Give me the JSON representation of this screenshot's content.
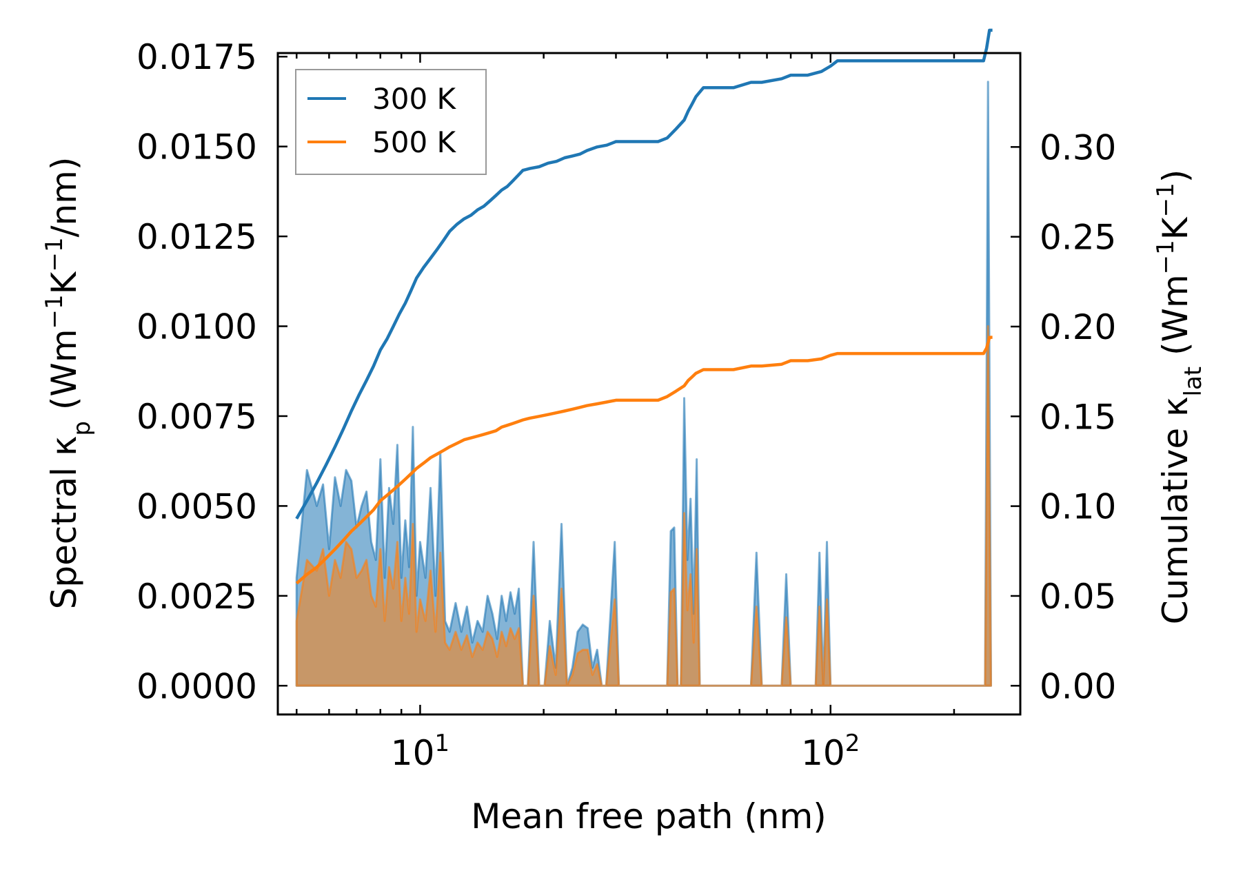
{
  "chart_data": {
    "type": "line",
    "xscale": "log",
    "xlabel": "Mean free path (nm)",
    "ylabel_left": {
      "base": "Spectral κ",
      "sub": "p",
      "units": " (Wm",
      "sup1": "−1",
      "mid": "K",
      "sup2": "−1",
      "tail": "/nm)"
    },
    "ylabel_right": {
      "base": "Cumulative κ",
      "sub": "lat",
      "units": " (Wm",
      "sup1": "−1",
      "mid": "K",
      "sup2": "−1",
      "tail": ")"
    },
    "xlim": [
      4.5,
      290
    ],
    "ylim_left": [
      -0.0008,
      0.0176
    ],
    "ylim_right": [
      -0.016,
      0.3523
    ],
    "x_ticks": [
      {
        "value": 10,
        "base": "10",
        "exp": "1"
      },
      {
        "value": 100,
        "base": "10",
        "exp": "2"
      }
    ],
    "y_ticks_left": [
      "0.0000",
      "0.0025",
      "0.0050",
      "0.0075",
      "0.0100",
      "0.0125",
      "0.0150",
      "0.0175"
    ],
    "y_ticks_right": [
      "0.00",
      "0.05",
      "0.10",
      "0.15",
      "0.20",
      "0.25",
      "0.30"
    ],
    "legend": {
      "position": "upper left",
      "entries": [
        "300 K",
        "500 K"
      ]
    },
    "colors": {
      "300 K": "#1f77b4",
      "500 K": "#ff7f0e",
      "fill_300": "#1f77b4",
      "fill_500": "#ff7f0e"
    },
    "spectral_x": [
      5.0,
      5.3,
      5.6,
      5.8,
      6.0,
      6.2,
      6.4,
      6.6,
      6.8,
      7.0,
      7.2,
      7.4,
      7.6,
      7.8,
      8.0,
      8.2,
      8.4,
      8.6,
      8.8,
      9.0,
      9.2,
      9.4,
      9.6,
      9.8,
      10.0,
      10.3,
      10.6,
      10.9,
      11.2,
      11.5,
      11.8,
      12.2,
      12.6,
      13.0,
      13.4,
      13.8,
      14.2,
      14.6,
      15.0,
      15.4,
      15.8,
      16.2,
      16.6,
      17.0,
      17.4,
      17.8,
      18.3,
      18.9,
      19.5,
      20.1,
      20.7,
      21.4,
      22.1,
      22.8,
      23.5,
      24.2,
      24.9,
      25.6,
      26.3,
      27.0,
      27.7,
      28.4,
      29.1,
      29.8,
      30.5,
      31.2,
      40.0,
      40.8,
      41.6,
      42.4,
      43.2,
      44.0,
      44.8,
      45.6,
      46.4,
      47.2,
      48.0,
      48.8,
      49.6,
      50.4,
      51.2,
      52.0,
      64.0,
      66.0,
      68.0,
      76.0,
      78.0,
      80.0,
      82.0,
      92.0,
      94.0,
      96.0,
      98.0,
      100.0,
      102.0,
      104.0,
      230.0,
      234.0,
      238.0,
      242.0,
      246.0
    ],
    "spectral_300": [
      0.003,
      0.006,
      0.005,
      0.0056,
      0.0038,
      0.0058,
      0.005,
      0.006,
      0.0057,
      0.0044,
      0.005,
      0.0054,
      0.004,
      0.0035,
      0.0063,
      0.003,
      0.0055,
      0.0045,
      0.0067,
      0.003,
      0.0046,
      0.0033,
      0.0072,
      0.0025,
      0.004,
      0.003,
      0.0055,
      0.0025,
      0.0065,
      0.0018,
      0.0015,
      0.0023,
      0.0015,
      0.0022,
      0.0012,
      0.0018,
      0.0015,
      0.0025,
      0.002,
      0.0013,
      0.0025,
      0.0018,
      0.0026,
      0.002,
      0.0027,
      0.0,
      0.0,
      0.004,
      0.0,
      0.0,
      0.0018,
      0.0005,
      0.0045,
      0.0,
      0.0005,
      0.0015,
      0.0017,
      0.0016,
      0.0005,
      0.001,
      0.0,
      0.0,
      0.002,
      0.004,
      0.0,
      0.0,
      0.0,
      0.0043,
      0.0044,
      0.0,
      0.0,
      0.008,
      0.0035,
      0.0052,
      0.002,
      0.0063,
      0.0,
      0.0,
      0.0,
      0.0,
      0.0,
      0.0,
      0.0,
      0.0037,
      0.0,
      0.0,
      0.0031,
      0.0,
      0.0,
      0.0,
      0.0037,
      0.0,
      0.004,
      0.0,
      0.0,
      0.0,
      0.0,
      0.0,
      0.0,
      0.0168,
      0.0
    ],
    "spectral_500": [
      0.0018,
      0.0035,
      0.0032,
      0.0038,
      0.0025,
      0.0035,
      0.003,
      0.004,
      0.0038,
      0.003,
      0.0032,
      0.0035,
      0.0025,
      0.0022,
      0.0038,
      0.0018,
      0.0033,
      0.0027,
      0.004,
      0.0018,
      0.003,
      0.002,
      0.0045,
      0.0015,
      0.0024,
      0.0018,
      0.0032,
      0.0015,
      0.0037,
      0.0012,
      0.001,
      0.0015,
      0.001,
      0.0014,
      0.0008,
      0.0012,
      0.001,
      0.0015,
      0.0013,
      0.0008,
      0.0015,
      0.0011,
      0.0016,
      0.0013,
      0.0016,
      0.0,
      0.0,
      0.0025,
      0.0,
      0.0,
      0.0011,
      0.0003,
      0.0027,
      0.0,
      0.0003,
      0.0009,
      0.001,
      0.001,
      0.0003,
      0.0006,
      0.0,
      0.0,
      0.0012,
      0.0024,
      0.0,
      0.0,
      0.0,
      0.0026,
      0.0027,
      0.0,
      0.0,
      0.0048,
      0.0021,
      0.0031,
      0.0012,
      0.0038,
      0.0,
      0.0,
      0.0,
      0.0,
      0.0,
      0.0,
      0.0,
      0.0022,
      0.0,
      0.0,
      0.0019,
      0.0,
      0.0,
      0.0,
      0.0022,
      0.0,
      0.0024,
      0.0,
      0.0,
      0.0,
      0.0,
      0.0,
      0.0,
      0.01,
      0.0
    ],
    "cumulative_x": [
      5.0,
      5.3,
      5.6,
      5.9,
      6.2,
      6.5,
      6.8,
      7.1,
      7.4,
      7.7,
      8.0,
      8.3,
      8.6,
      8.9,
      9.2,
      9.5,
      9.8,
      10.2,
      10.6,
      11.0,
      11.4,
      11.8,
      12.3,
      12.8,
      13.3,
      13.8,
      14.3,
      14.8,
      15.3,
      15.8,
      16.3,
      16.8,
      17.3,
      17.8,
      18.5,
      19.5,
      20.5,
      21.5,
      22.5,
      23.5,
      24.5,
      25.5,
      27.0,
      28.5,
      30.0,
      32.0,
      35.0,
      38.0,
      40.0,
      42.0,
      44.0,
      45.0,
      46.0,
      47.0,
      49.0,
      52.0,
      58.0,
      64.0,
      68.0,
      76.0,
      80.0,
      88.0,
      95.0,
      100.0,
      104.0,
      150.0,
      200.0,
      236.0,
      240.0,
      244.0,
      248.0
    ],
    "cumulative_300": [
      0.093,
      0.103,
      0.113,
      0.123,
      0.133,
      0.143,
      0.153,
      0.162,
      0.17,
      0.178,
      0.187,
      0.193,
      0.2,
      0.207,
      0.213,
      0.22,
      0.227,
      0.233,
      0.238,
      0.243,
      0.248,
      0.253,
      0.257,
      0.26,
      0.262,
      0.265,
      0.267,
      0.27,
      0.273,
      0.276,
      0.278,
      0.281,
      0.284,
      0.287,
      0.288,
      0.289,
      0.291,
      0.292,
      0.294,
      0.295,
      0.296,
      0.298,
      0.3,
      0.301,
      0.303,
      0.303,
      0.303,
      0.303,
      0.305,
      0.31,
      0.315,
      0.32,
      0.324,
      0.328,
      0.333,
      0.333,
      0.333,
      0.336,
      0.336,
      0.338,
      0.34,
      0.34,
      0.342,
      0.345,
      0.348,
      0.348,
      0.348,
      0.348,
      0.355,
      0.365,
      0.365
    ],
    "cumulative_500": [
      0.057,
      0.062,
      0.066,
      0.071,
      0.076,
      0.081,
      0.086,
      0.09,
      0.094,
      0.098,
      0.103,
      0.106,
      0.109,
      0.112,
      0.115,
      0.118,
      0.121,
      0.124,
      0.127,
      0.129,
      0.131,
      0.133,
      0.135,
      0.137,
      0.138,
      0.139,
      0.14,
      0.141,
      0.142,
      0.144,
      0.145,
      0.146,
      0.147,
      0.148,
      0.149,
      0.15,
      0.151,
      0.152,
      0.153,
      0.154,
      0.155,
      0.156,
      0.157,
      0.158,
      0.159,
      0.159,
      0.159,
      0.159,
      0.161,
      0.164,
      0.167,
      0.17,
      0.172,
      0.174,
      0.176,
      0.176,
      0.176,
      0.178,
      0.178,
      0.179,
      0.181,
      0.181,
      0.182,
      0.184,
      0.185,
      0.185,
      0.185,
      0.185,
      0.188,
      0.194,
      0.194
    ]
  }
}
